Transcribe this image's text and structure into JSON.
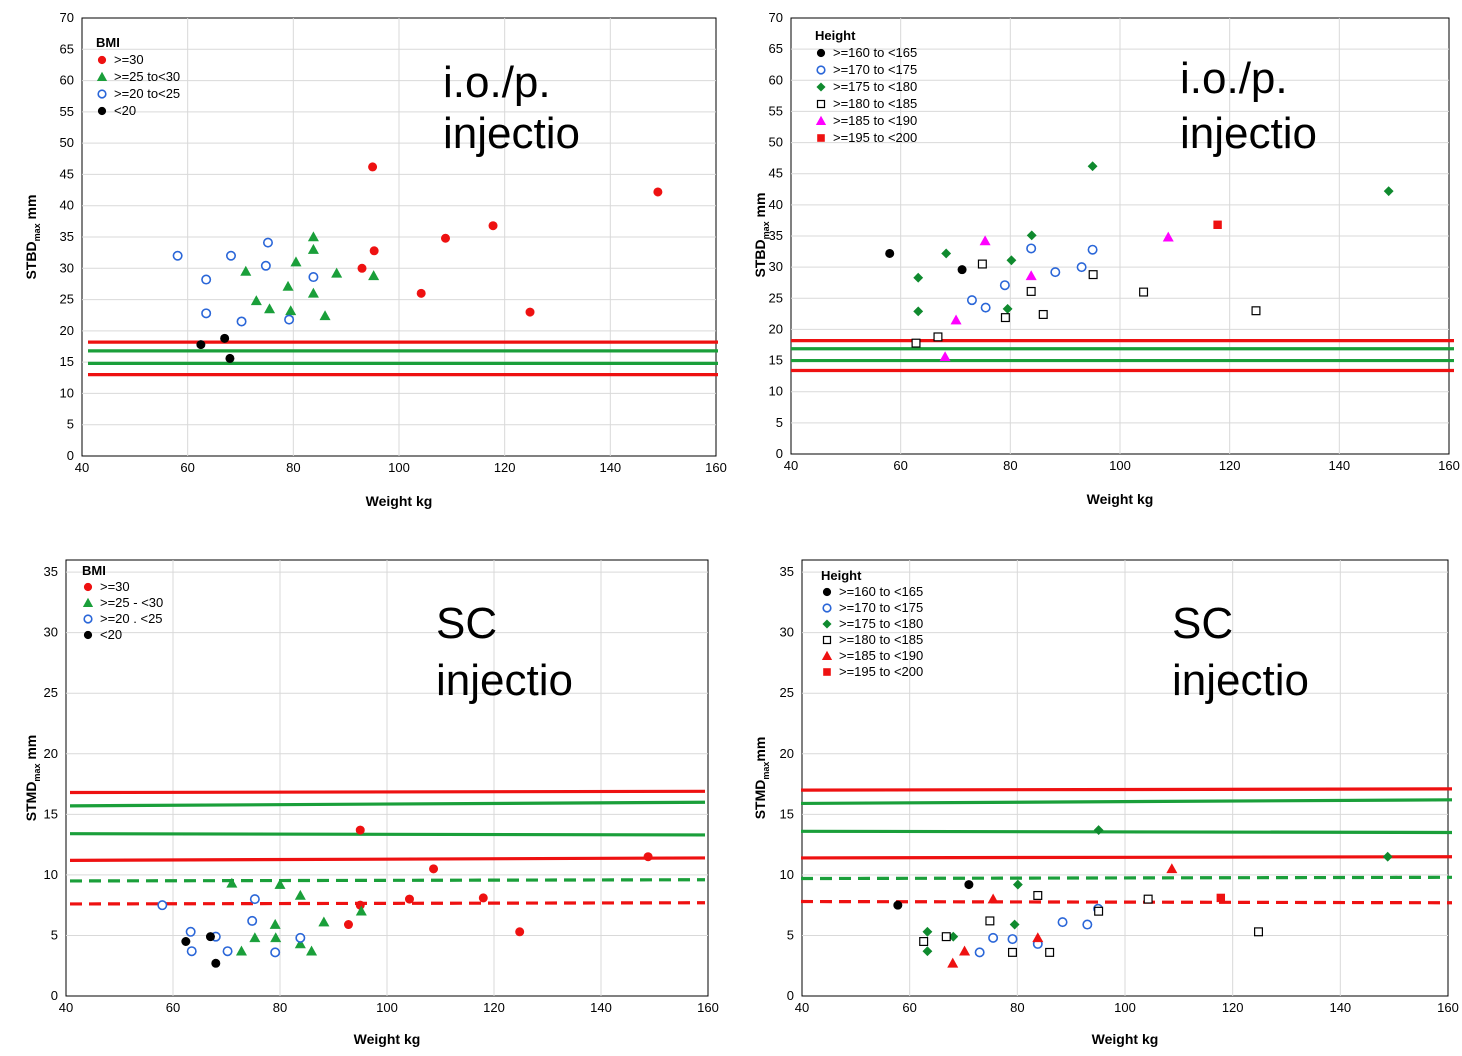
{
  "colors": {
    "red": "#ee1111",
    "green": "#1a9f3a",
    "blue": "#2a66d8",
    "black": "#000000",
    "darkgreen": "#0f8a2e",
    "magenta": "#ff00ff",
    "grid": "#d9d9d9"
  },
  "chart_data": [
    {
      "type": "scatter",
      "annotation": [
        "i.o./p.",
        "injectio"
      ],
      "xlabel": "Weight kg",
      "ylabel_main": "STBD",
      "ylabel_sub": "max",
      "ylabel_unit": " mm",
      "xlim": [
        40,
        160
      ],
      "ylim": [
        0,
        70
      ],
      "xticks": [
        40,
        60,
        80,
        100,
        120,
        140,
        160
      ],
      "yticks": [
        0,
        5,
        10,
        15,
        20,
        25,
        30,
        35,
        40,
        45,
        50,
        55,
        60,
        65,
        70
      ],
      "grid": true,
      "legend_position": "top-left",
      "legend_title": "BMI",
      "series": [
        {
          "name": ">=30",
          "marker": "circle",
          "color": "red",
          "filled": true,
          "points": [
            [
              93,
              30
            ],
            [
              95,
              46.2
            ],
            [
              95.3,
              32.8
            ],
            [
              104.2,
              26
            ],
            [
              108.8,
              34.8
            ],
            [
              117.8,
              36.8
            ],
            [
              124.8,
              23
            ],
            [
              149,
              42.2
            ]
          ]
        },
        {
          "name": ">=25 to<30",
          "marker": "triangle",
          "color": "green",
          "filled": true,
          "points": [
            [
              71,
              29.5
            ],
            [
              73,
              24.8
            ],
            [
              75.5,
              23.5
            ],
            [
              79,
              27.1
            ],
            [
              79.5,
              23.2
            ],
            [
              80.5,
              31
            ],
            [
              83.8,
              35
            ],
            [
              83.8,
              33
            ],
            [
              83.8,
              26
            ],
            [
              86,
              22.4
            ],
            [
              88.2,
              29.2
            ],
            [
              95.2,
              28.8
            ]
          ]
        },
        {
          "name": ">=20 to<25",
          "marker": "circle",
          "color": "blue",
          "filled": false,
          "points": [
            [
              58.1,
              32
            ],
            [
              63.5,
              28.2
            ],
            [
              63.5,
              22.8
            ],
            [
              68.2,
              32
            ],
            [
              70.2,
              21.5
            ],
            [
              74.8,
              30.4
            ],
            [
              75.2,
              34.1
            ],
            [
              79.2,
              21.8
            ],
            [
              83.8,
              28.6
            ]
          ]
        },
        {
          "name": "<20",
          "marker": "circle",
          "color": "black",
          "filled": true,
          "points": [
            [
              62.5,
              17.8
            ],
            [
              67,
              18.8
            ],
            [
              68,
              15.6
            ]
          ]
        }
      ],
      "lines": [
        {
          "color": "red",
          "style": "solid",
          "y": [
            18.2,
            18.2
          ]
        },
        {
          "color": "green",
          "style": "solid",
          "y": [
            16.8,
            16.8
          ]
        },
        {
          "color": "green",
          "style": "solid",
          "y": [
            14.8,
            14.8
          ]
        },
        {
          "color": "red",
          "style": "solid",
          "y": [
            13,
            13
          ]
        }
      ]
    },
    {
      "type": "scatter",
      "annotation": [
        "i.o./p.",
        "injectio"
      ],
      "xlabel": "Weight kg",
      "ylabel_main": "STBD",
      "ylabel_sub": "max",
      "ylabel_unit": " mm",
      "xlim": [
        40,
        160
      ],
      "ylim": [
        0,
        70
      ],
      "xticks": [
        40,
        60,
        80,
        100,
        120,
        140,
        160
      ],
      "yticks": [
        0,
        5,
        10,
        15,
        20,
        25,
        30,
        35,
        40,
        45,
        50,
        55,
        60,
        65,
        70
      ],
      "grid": true,
      "legend_position": "top-left",
      "legend_title": "Height",
      "series": [
        {
          "name": ">=160 to <165",
          "marker": "circle",
          "color": "black",
          "filled": true,
          "points": [
            [
              58,
              32.2
            ],
            [
              71.2,
              29.6
            ]
          ]
        },
        {
          "name": ">=170 to <175",
          "marker": "circle",
          "color": "blue",
          "filled": false,
          "points": [
            [
              73,
              24.7
            ],
            [
              75.5,
              23.5
            ],
            [
              79,
              27.1
            ],
            [
              83.8,
              33
            ],
            [
              88.2,
              29.2
            ],
            [
              93,
              30
            ],
            [
              95,
              32.8
            ]
          ]
        },
        {
          "name": ">=175 to <180",
          "marker": "diamond",
          "color": "darkgreen",
          "filled": true,
          "points": [
            [
              63.2,
              28.3
            ],
            [
              63.2,
              22.9
            ],
            [
              68.3,
              32.2
            ],
            [
              79.5,
              23.3
            ],
            [
              80.2,
              31.1
            ],
            [
              83.9,
              35.1
            ],
            [
              95,
              46.2
            ],
            [
              149,
              42.2
            ]
          ]
        },
        {
          "name": ">=180 to <185",
          "marker": "square",
          "color": "black",
          "filled": false,
          "points": [
            [
              62.8,
              17.8
            ],
            [
              66.8,
              18.8
            ],
            [
              74.9,
              30.5
            ],
            [
              79.1,
              21.9
            ],
            [
              83.8,
              26.1
            ],
            [
              86,
              22.4
            ],
            [
              95.1,
              28.8
            ],
            [
              104.3,
              26
            ],
            [
              124.8,
              23
            ]
          ]
        },
        {
          "name": ">=185 to <190",
          "marker": "triangle",
          "color": "magenta",
          "filled": true,
          "points": [
            [
              68.1,
              15.6
            ],
            [
              70.1,
              21.5
            ],
            [
              75.4,
              34.2
            ],
            [
              83.8,
              28.6
            ],
            [
              108.8,
              34.8
            ]
          ]
        },
        {
          "name": ">=195 to <200",
          "marker": "square",
          "color": "red",
          "filled": true,
          "points": [
            [
              117.8,
              36.8
            ]
          ]
        }
      ],
      "lines": [
        {
          "color": "red",
          "style": "solid",
          "y": [
            18.2,
            18.2
          ]
        },
        {
          "color": "green",
          "style": "solid",
          "y": [
            16.9,
            16.9
          ]
        },
        {
          "color": "green",
          "style": "solid",
          "y": [
            15,
            15
          ]
        },
        {
          "color": "red",
          "style": "solid",
          "y": [
            13.4,
            13.4
          ]
        }
      ]
    },
    {
      "type": "scatter",
      "annotation": [
        "SC",
        "injectio"
      ],
      "xlabel": "Weight kg",
      "ylabel_main": "STMD",
      "ylabel_sub": "max",
      "ylabel_unit": " mm",
      "xlim": [
        40,
        160
      ],
      "ylim": [
        0,
        36
      ],
      "xticks": [
        40,
        60,
        80,
        100,
        120,
        140,
        160
      ],
      "yticks": [
        0,
        5,
        10,
        15,
        20,
        25,
        30,
        35
      ],
      "grid": true,
      "legend_position": "top-left",
      "legend_title": "BMI",
      "series": [
        {
          "name": ">=30",
          "marker": "circle",
          "color": "red",
          "filled": true,
          "points": [
            [
              92.8,
              5.9
            ],
            [
              95,
              13.7
            ],
            [
              95,
              7.5
            ],
            [
              104.2,
              8
            ],
            [
              108.7,
              10.5
            ],
            [
              118,
              8.1
            ],
            [
              124.8,
              5.3
            ],
            [
              148.8,
              11.5
            ]
          ]
        },
        {
          "name": ">=25 - <30",
          "marker": "triangle",
          "color": "green",
          "filled": true,
          "points": [
            [
              71,
              9.3
            ],
            [
              72.8,
              3.7
            ],
            [
              75.3,
              4.8
            ],
            [
              79.1,
              5.9
            ],
            [
              79.2,
              4.8
            ],
            [
              80,
              9.2
            ],
            [
              83.8,
              8.3
            ],
            [
              83.8,
              4.3
            ],
            [
              85.9,
              3.7
            ],
            [
              88.2,
              6.1
            ],
            [
              95.2,
              7
            ]
          ]
        },
        {
          "name": ">=20 . <25",
          "marker": "circle",
          "color": "blue",
          "filled": false,
          "points": [
            [
              58,
              7.5
            ],
            [
              63.3,
              5.3
            ],
            [
              63.5,
              3.7
            ],
            [
              68,
              4.9
            ],
            [
              70.2,
              3.7
            ],
            [
              74.8,
              6.2
            ],
            [
              75.3,
              8
            ],
            [
              79.1,
              3.6
            ],
            [
              83.8,
              4.8
            ]
          ]
        },
        {
          "name": "<20",
          "marker": "circle",
          "color": "black",
          "filled": true,
          "points": [
            [
              62.4,
              4.5
            ],
            [
              67,
              4.9
            ],
            [
              68,
              2.7
            ]
          ]
        }
      ],
      "lines": [
        {
          "color": "red",
          "style": "solid",
          "y": [
            16.8,
            16.9
          ]
        },
        {
          "color": "green",
          "style": "solid",
          "y": [
            15.7,
            16
          ]
        },
        {
          "color": "green",
          "style": "solid",
          "y": [
            13.4,
            13.3
          ]
        },
        {
          "color": "red",
          "style": "solid",
          "y": [
            11.2,
            11.4
          ]
        },
        {
          "color": "green",
          "style": "dashed",
          "y": [
            9.5,
            9.6
          ]
        },
        {
          "color": "red",
          "style": "dashed",
          "y": [
            7.6,
            7.7
          ]
        }
      ]
    },
    {
      "type": "scatter",
      "annotation": [
        "SC",
        "injectio"
      ],
      "xlabel": "Weight kg",
      "ylabel_main": "STMD",
      "ylabel_sub": "max",
      "ylabel_unit": "mm",
      "xlim": [
        40,
        160
      ],
      "ylim": [
        0,
        36
      ],
      "xticks": [
        40,
        60,
        80,
        100,
        120,
        140,
        160
      ],
      "yticks": [
        0,
        5,
        10,
        15,
        20,
        25,
        30,
        35
      ],
      "grid": true,
      "legend_position": "top-left",
      "legend_title": "Height",
      "series": [
        {
          "name": ">=160 to <165",
          "marker": "circle",
          "color": "black",
          "filled": true,
          "points": [
            [
              57.8,
              7.5
            ],
            [
              71,
              9.2
            ]
          ]
        },
        {
          "name": ">=170 to <175",
          "marker": "circle",
          "color": "blue",
          "filled": false,
          "points": [
            [
              73,
              3.6
            ],
            [
              75.5,
              4.8
            ],
            [
              79.1,
              4.7
            ],
            [
              83.8,
              4.3
            ],
            [
              88.4,
              6.1
            ],
            [
              93,
              5.9
            ],
            [
              95,
              7.2
            ]
          ]
        },
        {
          "name": ">=175 to <180",
          "marker": "diamond",
          "color": "darkgreen",
          "filled": true,
          "points": [
            [
              63.3,
              5.3
            ],
            [
              63.3,
              3.7
            ],
            [
              68.1,
              4.9
            ],
            [
              79.5,
              5.9
            ],
            [
              80.1,
              9.2
            ],
            [
              95.1,
              13.7
            ],
            [
              148.8,
              11.5
            ]
          ]
        },
        {
          "name": ">=180 to <185",
          "marker": "square",
          "color": "black",
          "filled": false,
          "points": [
            [
              62.6,
              4.5
            ],
            [
              66.8,
              4.9
            ],
            [
              74.9,
              6.2
            ],
            [
              79.1,
              3.6
            ],
            [
              83.8,
              8.3
            ],
            [
              86,
              3.6
            ],
            [
              95.1,
              7
            ],
            [
              104.3,
              8
            ],
            [
              124.8,
              5.3
            ]
          ]
        },
        {
          "name": ">=185 to <190",
          "marker": "triangle",
          "color": "red",
          "filled": true,
          "points": [
            [
              68,
              2.7
            ],
            [
              70.2,
              3.7
            ],
            [
              75.5,
              8
            ],
            [
              83.8,
              4.8
            ],
            [
              108.7,
              10.5
            ]
          ]
        },
        {
          "name": ">=195 to <200",
          "marker": "square",
          "color": "red",
          "filled": true,
          "points": [
            [
              117.8,
              8.1
            ]
          ]
        }
      ],
      "lines": [
        {
          "color": "red",
          "style": "solid",
          "y": [
            17,
            17.1
          ]
        },
        {
          "color": "green",
          "style": "solid",
          "y": [
            15.9,
            16.2
          ]
        },
        {
          "color": "green",
          "style": "solid",
          "y": [
            13.6,
            13.5
          ]
        },
        {
          "color": "red",
          "style": "solid",
          "y": [
            11.4,
            11.5
          ]
        },
        {
          "color": "green",
          "style": "dashed",
          "y": [
            9.7,
            9.8
          ]
        },
        {
          "color": "red",
          "style": "dashed",
          "y": [
            7.8,
            7.7
          ]
        }
      ]
    }
  ]
}
